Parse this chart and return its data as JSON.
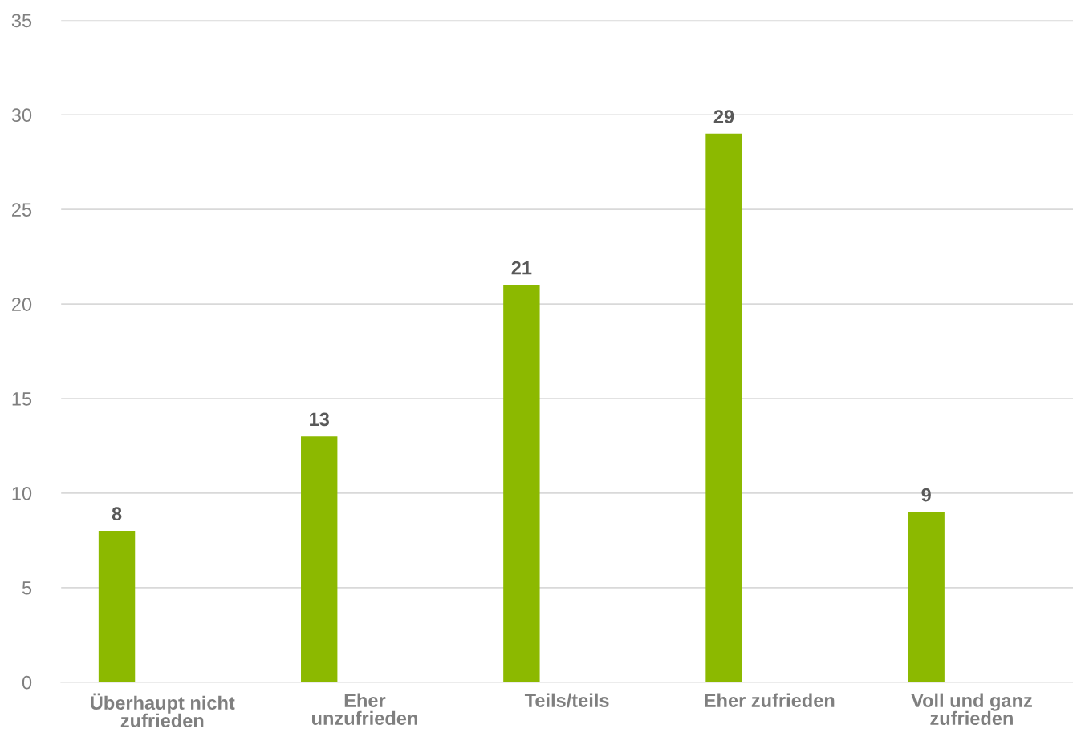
{
  "chart_data": {
    "type": "bar",
    "categories": [
      "Überhaupt nicht\nzufrieden",
      "Eher\nunzufrieden",
      "Teils/teils",
      "Eher zufrieden",
      "Voll und ganz\nzufrieden"
    ],
    "values": [
      8,
      13,
      21,
      29,
      9
    ],
    "color": "#8cb900",
    "ylim": [
      0,
      35
    ],
    "yticks": [
      0,
      5,
      10,
      15,
      20,
      25,
      30,
      35
    ],
    "grid": "y",
    "data_labels": true
  }
}
